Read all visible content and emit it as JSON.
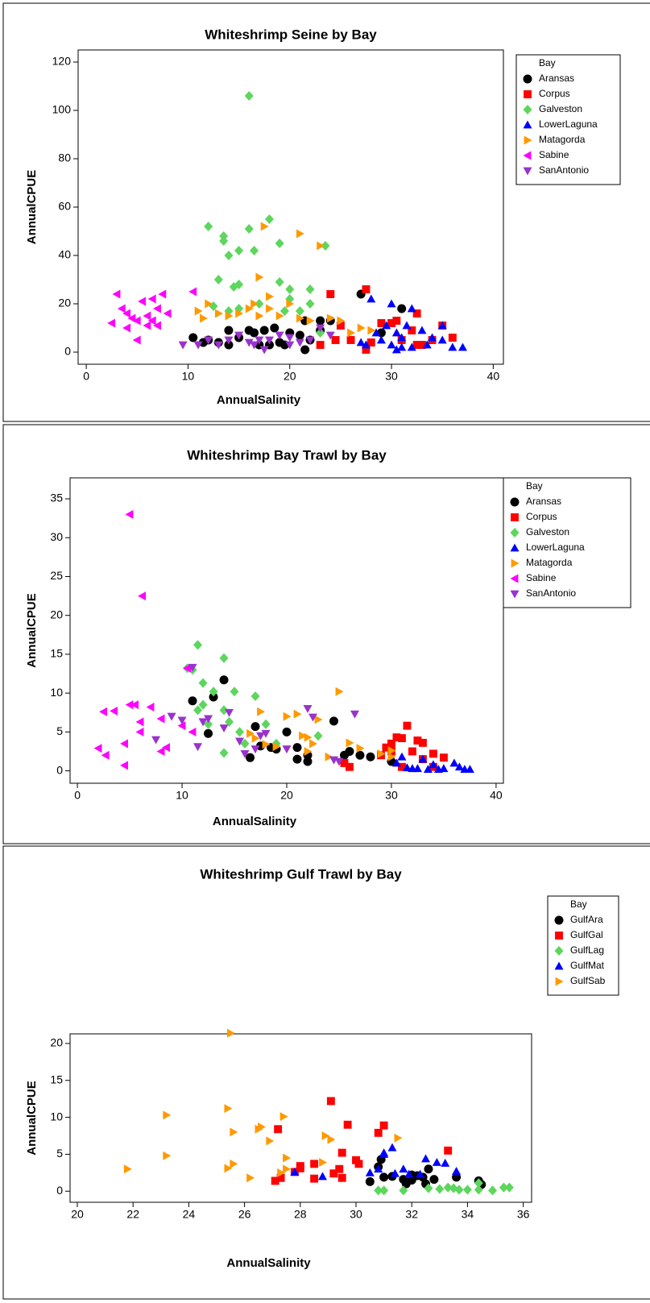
{
  "chart_data": [
    {
      "type": "scatter",
      "title": "Whiteshrimp Seine by Bay",
      "x_label": "AnnualSalinity",
      "y_label": "AnnualCPUE",
      "legend_title": "Bay",
      "legend": "right",
      "xlim": [
        -0.8,
        41
      ],
      "xticks": [
        0,
        10,
        20,
        30,
        40
      ],
      "ylim": [
        -5,
        125
      ],
      "yticks": [
        0,
        20,
        40,
        60,
        80,
        100,
        120
      ],
      "series": [
        {
          "name": "Aransas",
          "color": "#000000",
          "marker": "circle",
          "x": [
            10.5,
            11.5,
            12,
            13,
            14,
            14,
            15,
            16,
            16.5,
            17,
            17.5,
            18,
            18.5,
            19,
            19.5,
            20,
            21,
            21.5,
            21.5,
            22,
            23,
            24,
            27,
            29,
            31,
            23
          ],
          "values": [
            6,
            4,
            5,
            4,
            3,
            9,
            6,
            9,
            8,
            3,
            9,
            3,
            10,
            4,
            3,
            8,
            7,
            13,
            1,
            5,
            13,
            13,
            24,
            8,
            18,
            9
          ]
        },
        {
          "name": "Corpus",
          "color": "#ff0000",
          "marker": "square",
          "x": [
            24,
            24.5,
            25,
            26,
            27.5,
            27.5,
            28,
            29,
            30,
            30.5,
            31,
            32,
            32.5,
            32.5,
            33,
            34,
            35,
            36,
            23
          ],
          "values": [
            24,
            5,
            11,
            5,
            26,
            1,
            4,
            12,
            12,
            13,
            5,
            9,
            16,
            3,
            3,
            5,
            11,
            6,
            3
          ]
        },
        {
          "name": "Galveston",
          "color": "#5cd65c",
          "marker": "diamond",
          "x": [
            12,
            13,
            13.5,
            13.5,
            14,
            14,
            14.5,
            15,
            15,
            15,
            16,
            16,
            16.5,
            17,
            18,
            19,
            19,
            19.5,
            20,
            20,
            21,
            22,
            22,
            23,
            23.5,
            12.5
          ],
          "values": [
            52,
            30,
            46,
            48,
            17,
            40,
            27,
            28,
            42,
            18,
            51,
            106,
            42,
            20,
            55,
            45,
            29,
            17,
            22,
            26,
            17,
            20,
            26,
            8,
            44,
            19
          ]
        },
        {
          "name": "LowerLaguna",
          "color": "#0000ff",
          "marker": "triangle-up",
          "x": [
            27,
            27.5,
            28,
            28.5,
            29,
            29.5,
            30,
            30,
            30.5,
            30.5,
            31,
            31,
            31.5,
            32,
            32,
            33,
            33.5,
            34,
            35,
            35,
            36,
            37
          ],
          "values": [
            4,
            3,
            22,
            8,
            5,
            11,
            20,
            3,
            1,
            8,
            2,
            6,
            11,
            18,
            2,
            9,
            3,
            6,
            11,
            5,
            2,
            2
          ]
        },
        {
          "name": "Matagorda",
          "color": "#ff9900",
          "marker": "triangle-right",
          "x": [
            11,
            11.5,
            12,
            13,
            14,
            15,
            16,
            16.5,
            17,
            17,
            17.5,
            18,
            18,
            19,
            20,
            21,
            21,
            22,
            23,
            24,
            25,
            26,
            27,
            28
          ],
          "values": [
            17,
            14,
            20,
            16,
            15,
            16,
            18,
            20,
            31,
            15,
            52,
            18,
            23,
            15,
            20,
            49,
            14,
            13,
            44,
            14,
            13,
            8,
            10,
            9
          ]
        },
        {
          "name": "Sabine",
          "color": "#ff00ff",
          "marker": "triangle-left",
          "x": [
            2.5,
            3,
            3.5,
            4,
            4,
            4.5,
            5,
            5,
            5.5,
            6,
            6.5,
            6.5,
            7,
            7,
            7.5,
            8,
            10.5,
            6
          ],
          "values": [
            12,
            24,
            18,
            10,
            16,
            14,
            5,
            13,
            21,
            15,
            13,
            22,
            11,
            18,
            24,
            16,
            25,
            11
          ]
        },
        {
          "name": "SanAntonio",
          "color": "#9933cc",
          "marker": "triangle-down",
          "x": [
            9.5,
            11,
            12,
            13,
            14,
            15,
            16,
            17,
            17.5,
            18,
            19,
            20,
            20,
            21,
            22,
            23,
            24,
            16.5
          ],
          "values": [
            3,
            3,
            5,
            3,
            5,
            7,
            4,
            5,
            1,
            5,
            7,
            3,
            6,
            4,
            5,
            10,
            7,
            3
          ]
        }
      ]
    },
    {
      "type": "scatter",
      "title": "Whiteshrimp Bay Trawl by Bay",
      "x_label": "AnnualSalinity",
      "y_label": "AnnualCPUE",
      "legend_title": "Bay",
      "legend": "right",
      "xlim": [
        -0.7,
        40.7
      ],
      "xticks": [
        0,
        10,
        20,
        30,
        40
      ],
      "ylim": [
        -1.6,
        37.7
      ],
      "yticks": [
        0,
        5,
        10,
        15,
        20,
        25,
        30,
        35
      ],
      "series": [
        {
          "name": "Aransas",
          "color": "#000000",
          "marker": "circle",
          "x": [
            11,
            12.5,
            13,
            14,
            16.5,
            17,
            17.5,
            18.5,
            19,
            20,
            21,
            22,
            22,
            24.5,
            25.5,
            26,
            27,
            28,
            30,
            21
          ],
          "values": [
            9,
            4.8,
            9.5,
            11.7,
            1.7,
            5.7,
            3.2,
            3,
            2.8,
            5,
            1.5,
            1.2,
            2,
            6.4,
            2,
            2.5,
            2,
            1.8,
            1.2,
            3
          ]
        },
        {
          "name": "Corpus",
          "color": "#ff0000",
          "marker": "square",
          "x": [
            25.5,
            26,
            29,
            29.5,
            30,
            30,
            30.5,
            31,
            31,
            31.5,
            32,
            32.5,
            33,
            33,
            34,
            34,
            35
          ],
          "values": [
            1,
            0.5,
            2,
            3,
            2.5,
            3.5,
            4.3,
            4.2,
            0.5,
            5.8,
            2.5,
            3.9,
            3.6,
            1.5,
            2.2,
            0.5,
            1.7
          ]
        },
        {
          "name": "Galveston",
          "color": "#5cd65c",
          "marker": "diamond",
          "x": [
            10.5,
            11,
            11.5,
            11.5,
            12,
            12,
            13,
            14,
            14,
            14.5,
            15,
            15.5,
            16,
            17,
            18,
            19,
            23,
            12.5,
            14
          ],
          "values": [
            13.2,
            13,
            16.2,
            7.8,
            11.3,
            8.5,
            10.2,
            14.5,
            2.3,
            6.3,
            10.2,
            5,
            3.5,
            9.6,
            6,
            3.5,
            4.5,
            6,
            7.8
          ]
        },
        {
          "name": "LowerLaguna",
          "color": "#0000ff",
          "marker": "triangle-up",
          "x": [
            30.5,
            31,
            31.5,
            32,
            32.5,
            33,
            33.5,
            34,
            34.5,
            35,
            36,
            36.5,
            37,
            37.5
          ],
          "values": [
            1,
            1.8,
            0.4,
            0.3,
            0.3,
            1.5,
            0.2,
            0.8,
            0.2,
            0.3,
            1,
            0.5,
            0.2,
            0.2
          ]
        },
        {
          "name": "Matagorda",
          "color": "#ff9900",
          "marker": "triangle-right",
          "x": [
            16.5,
            17,
            17.5,
            18,
            19,
            20,
            21,
            21.5,
            22,
            22,
            23,
            24,
            25,
            26,
            27,
            29,
            30,
            30,
            22.5
          ],
          "values": [
            4.8,
            4.2,
            7.6,
            3.4,
            3.1,
            7,
            7.3,
            4.5,
            4.3,
            2.5,
            6.6,
            1.8,
            10.2,
            3.6,
            2.9,
            2.2,
            2.6,
            1.8,
            3.5
          ]
        },
        {
          "name": "Sabine",
          "color": "#ff00ff",
          "marker": "triangle-left",
          "x": [
            2,
            2.5,
            2.7,
            3.5,
            4.5,
            4.5,
            5,
            5,
            5.5,
            6,
            6,
            6.2,
            7,
            8,
            8,
            8.5,
            10,
            10.5,
            11
          ],
          "values": [
            2.9,
            7.6,
            2,
            7.7,
            3.5,
            0.7,
            8.5,
            33,
            8.5,
            6.3,
            5,
            22.5,
            8.2,
            6.7,
            2.5,
            3,
            5.8,
            13.2,
            5
          ]
        },
        {
          "name": "SanAntonio",
          "color": "#9933cc",
          "marker": "triangle-down",
          "x": [
            7.5,
            9,
            10,
            11,
            11.5,
            12,
            12.5,
            14,
            14.5,
            15.5,
            16,
            17,
            17.5,
            18,
            20,
            22,
            22.5,
            24.5,
            25,
            26.5
          ],
          "values": [
            4,
            7,
            6.5,
            13.3,
            3.1,
            6.3,
            6.7,
            5.5,
            7.5,
            3.8,
            2.2,
            2.8,
            4.5,
            4.8,
            2.8,
            8,
            6.9,
            1.4,
            1.2,
            7.3
          ]
        }
      ]
    },
    {
      "type": "scatter",
      "title": "Whiteshrimp Gulf Trawl by Bay",
      "x_label": "AnnualSalinity",
      "y_label": "AnnualCPUE",
      "legend_title": "Bay",
      "legend": "right",
      "xlim": [
        19.74,
        36.3
      ],
      "xticks": [
        20,
        22,
        24,
        26,
        28,
        30,
        32,
        34,
        36
      ],
      "ylim": [
        -1.5,
        21.3
      ],
      "yticks": [
        0,
        5,
        10,
        15,
        20
      ],
      "series": [
        {
          "name": "GulfAra",
          "color": "#000000",
          "marker": "circle",
          "x": [
            30.5,
            30.8,
            30.9,
            31,
            31.3,
            31.7,
            31.8,
            32,
            32,
            32.2,
            32.4,
            32.5,
            32.6,
            32.8,
            33.6,
            34.4,
            34.5
          ],
          "values": [
            1.3,
            3.3,
            4.3,
            1.9,
            2,
            1.6,
            1,
            2.2,
            1.5,
            2.1,
            1.9,
            1,
            3,
            1.6,
            1.9,
            1.4,
            0.9
          ]
        },
        {
          "name": "GulfGal",
          "color": "#ff0000",
          "marker": "square",
          "x": [
            27.1,
            27.2,
            27.3,
            27.8,
            28,
            28,
            28.5,
            28.5,
            29.1,
            29.2,
            29.4,
            29.5,
            29.5,
            29.7,
            30,
            30.1,
            30.8,
            31,
            33.3
          ],
          "values": [
            1.4,
            8.4,
            1.8,
            2.6,
            3.4,
            3.1,
            1.7,
            3.7,
            12.2,
            2.4,
            3,
            5.2,
            1.8,
            9,
            4.2,
            3.7,
            7.9,
            8.9,
            5.5
          ]
        },
        {
          "name": "GulfLag",
          "color": "#5cd65c",
          "marker": "diamond",
          "x": [
            30.8,
            31,
            31.7,
            32.6,
            33,
            33.3,
            33.5,
            33.7,
            34,
            34.4,
            34.4,
            34.9,
            35.3,
            35.5
          ],
          "values": [
            0.1,
            0.1,
            0.1,
            0.4,
            0.3,
            0.5,
            0.4,
            0.2,
            0.2,
            0.2,
            1.1,
            0.1,
            0.5,
            0.5
          ]
        },
        {
          "name": "GulfMat",
          "color": "#0000ff",
          "marker": "triangle-up",
          "x": [
            27.8,
            28.8,
            30.5,
            30.8,
            31,
            31,
            31.3,
            31.4,
            31.7,
            31.9,
            32.3,
            32.5,
            32.9,
            33.2,
            33.6
          ],
          "values": [
            2.6,
            2,
            2.5,
            3,
            5,
            5.2,
            5.9,
            2.4,
            3,
            2.3,
            2.3,
            4.4,
            3.9,
            3.8,
            2.7
          ]
        },
        {
          "name": "GulfSab",
          "color": "#ff9900",
          "marker": "triangle-right",
          "x": [
            21.8,
            23.2,
            23.2,
            25.4,
            25.4,
            25.5,
            25.6,
            25.6,
            26.2,
            26.5,
            26.6,
            26.9,
            27.3,
            27.4,
            27.5,
            27.5,
            28.8,
            28.9,
            29.1,
            31.5
          ],
          "values": [
            3,
            10.3,
            4.8,
            3.1,
            11.2,
            21.4,
            8,
            3.7,
            1.8,
            8.4,
            8.7,
            6.8,
            2.5,
            10.1,
            4.5,
            3,
            3.9,
            7.5,
            7,
            7.2
          ]
        }
      ]
    }
  ]
}
